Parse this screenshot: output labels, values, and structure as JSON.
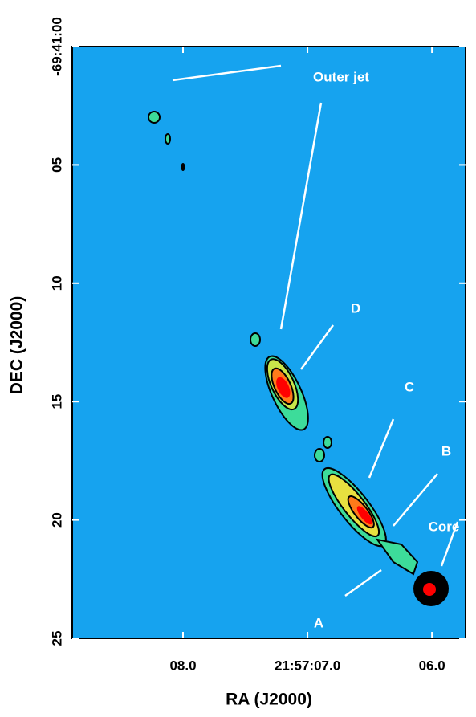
{
  "chart_data": {
    "type": "image",
    "xlabel": "RA (J2000)",
    "ylabel": "DEC (J2000)",
    "xlim": [
      8.89,
      5.73
    ],
    "xticks": [
      {
        "value": 8,
        "label": "08.0"
      },
      {
        "value": 7,
        "label": "21:57:07.0"
      },
      {
        "value": 6,
        "label": "06.0"
      }
    ],
    "ylim": [
      0,
      25
    ],
    "y_inverted": true,
    "yticks": [
      {
        "value": 0,
        "label": "-69:41:00"
      },
      {
        "value": 5,
        "label": "05"
      },
      {
        "value": 10,
        "label": "10"
      },
      {
        "value": 15,
        "label": "15"
      },
      {
        "value": 20,
        "label": "20"
      },
      {
        "value": 25,
        "label": "25"
      }
    ],
    "annotations": [
      "Outer jet",
      "D",
      "C",
      "B",
      "A",
      "Core"
    ]
  }
}
